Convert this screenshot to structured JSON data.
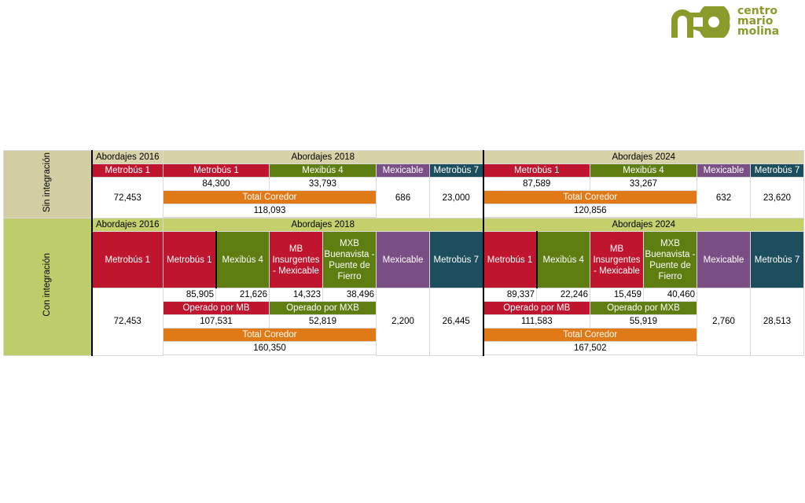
{
  "logo": {
    "line1": "centro",
    "line2": "mario",
    "line3": "molina"
  },
  "side": {
    "sin": "Sin integración",
    "con": "Con integración"
  },
  "sin": {
    "h2016": "Abordajes 2016",
    "h2018": "Abordajes 2018",
    "h2024": "Abordajes 2024",
    "mb1_2016_label": "Metrobús 1",
    "mb1_2016_value": "72,453",
    "y2018": {
      "mb1": "Metrobús 1",
      "mx4": "Mexibús 4",
      "mxc": "Mexicable",
      "mb7": "Metrobús 7",
      "mb1_value": "84,300",
      "mx4_value": "33,793",
      "mxc_value": "686",
      "mb7_value": "23,000",
      "total_label": "Total Coredor",
      "total_value": "118,093"
    },
    "y2024": {
      "mb1": "Metrobús 1",
      "mx4": "Mexibús 4",
      "mxc": "Mexicable",
      "mb7": "Metrobús 7",
      "mb1_value": "87,589",
      "mx4_value": "33,267",
      "mxc_value": "632",
      "mb7_value": "23,620",
      "total_label": "Total Coredor",
      "total_value": "120,856"
    }
  },
  "con": {
    "h2016": "Abordajes  2016",
    "h2018": "Abordajes 2018",
    "h2024": "Abordajes 2024",
    "mb1_2016_label": "Metrobús 1",
    "mb1_2016_value": "72,453",
    "y2018": {
      "mb1": "Metrobús 1",
      "mx4": "Mexibús 4",
      "mbi": "MB Insurgentes - Mexicable",
      "mxb": "MXB Buenavista - Puente de Fierro",
      "mxc": "Mexicable",
      "mb7": "Metrobús 7",
      "mb1_value": "85,905",
      "mx4_value": "21,626",
      "mbi_value": "14,323",
      "mxb_value": "38,496",
      "mxc_value": "2,200",
      "mb7_value": "26,445",
      "op_mb_label": "Operado por MB",
      "op_mxb_label": "Operado por MXB",
      "op_mb_value": "107,531",
      "op_mxb_value": "52,819",
      "total_label": "Total Coredor",
      "total_value": "160,350"
    },
    "y2024": {
      "mb1": "Metrobús 1",
      "mx4": "Mexibús 4",
      "mbi": "MB Insurgentes - Mexicable",
      "mxb": "MXB Buenavista - Puente de Fierro",
      "mxc": "Mexicable",
      "mb7": "Metrobús 7",
      "mb1_value": "89,337",
      "mx4_value": "22,246",
      "mbi_value": "15,459",
      "mxb_value": "40,460",
      "mxc_value": "2,760",
      "mb7_value": "28,513",
      "op_mb_label": "Operado por MB",
      "op_mxb_label": "Operado por MXB",
      "op_mb_value": "111,583",
      "op_mxb_value": "55,919",
      "total_label": "Total Coredor",
      "total_value": "167,502"
    }
  }
}
